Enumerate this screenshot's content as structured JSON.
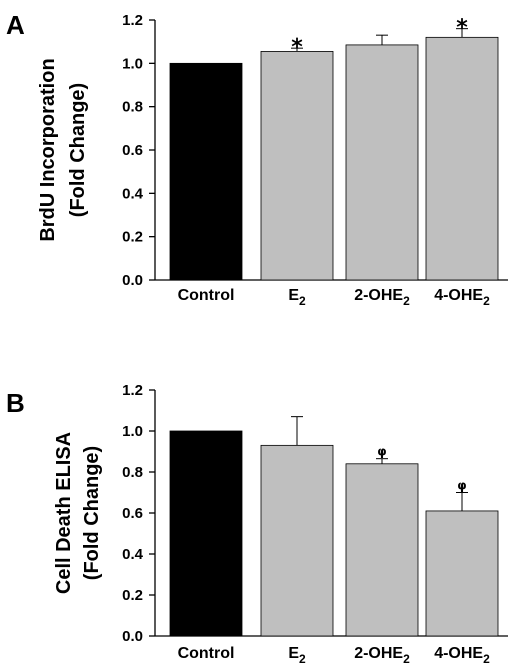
{
  "chart_data": [
    {
      "type": "bar",
      "panel": "A",
      "categories": [
        "Control",
        "E2",
        "2-OHE2",
        "4-OHE2"
      ],
      "category_labels": [
        {
          "base": "Control",
          "sub": ""
        },
        {
          "base": "E",
          "sub": "2"
        },
        {
          "base": "2-OHE",
          "sub": "2"
        },
        {
          "base": "4-OHE",
          "sub": "2"
        }
      ],
      "values": [
        1.0,
        1.055,
        1.085,
        1.12
      ],
      "errors": [
        0,
        0.015,
        0.045,
        0.04
      ],
      "annotations": [
        "",
        "*",
        "",
        "*"
      ],
      "bar_colors": [
        "#000000",
        "#bfbfbf",
        "#bfbfbf",
        "#bfbfbf"
      ],
      "ylabel_lines": [
        "BrdU Incorporation",
        "(Fold Change)"
      ],
      "xlabel": "",
      "ylim": [
        0,
        1.2
      ],
      "yticks": [
        "0.0",
        "0.2",
        "0.4",
        "0.6",
        "0.8",
        "1.0",
        "1.2"
      ],
      "grid": false
    },
    {
      "type": "bar",
      "panel": "B",
      "categories": [
        "Control",
        "E2",
        "2-OHE2",
        "4-OHE2"
      ],
      "category_labels": [
        {
          "base": "Control",
          "sub": ""
        },
        {
          "base": "E",
          "sub": "2"
        },
        {
          "base": "2-OHE",
          "sub": "2"
        },
        {
          "base": "4-OHE",
          "sub": "2"
        }
      ],
      "values": [
        1.0,
        0.93,
        0.84,
        0.61
      ],
      "errors": [
        0,
        0.14,
        0.025,
        0.09
      ],
      "annotations": [
        "",
        "",
        "φ",
        "φ"
      ],
      "bar_colors": [
        "#000000",
        "#bfbfbf",
        "#bfbfbf",
        "#bfbfbf"
      ],
      "ylabel_lines": [
        "Cell Death ELISA",
        "(Fold Change)"
      ],
      "xlabel": "",
      "ylim": [
        0,
        1.2
      ],
      "yticks": [
        "0.0",
        "0.2",
        "0.4",
        "0.6",
        "0.8",
        "1.0",
        "1.2"
      ],
      "grid": false
    }
  ]
}
